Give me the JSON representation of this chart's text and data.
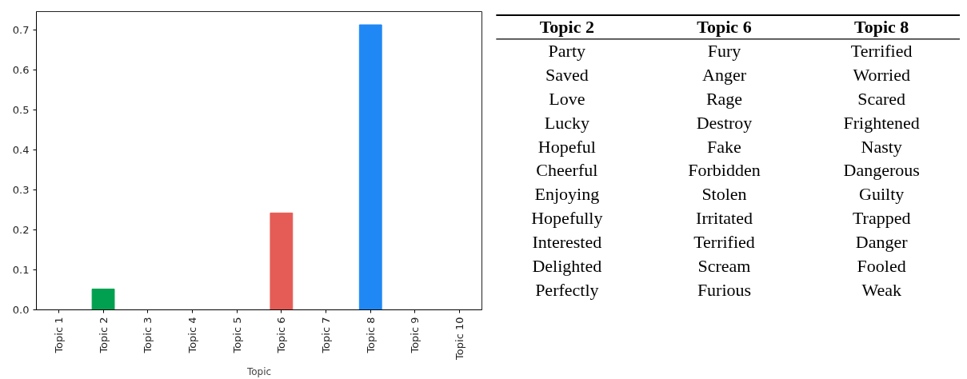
{
  "chart_data": [
    {
      "type": "bar",
      "xlabel": "Topic",
      "categories": [
        "Topic 1",
        "Topic 2",
        "Topic 3",
        "Topic 4",
        "Topic 5",
        "Topic 6",
        "Topic 7",
        "Topic 8",
        "Topic 9",
        "Topic 10"
      ],
      "values": [
        0,
        0.052,
        0,
        0,
        0,
        0.242,
        0,
        0.712,
        0,
        0
      ],
      "colors": [
        "#00a050",
        "#00a050",
        "#00a050",
        "#00a050",
        "#00a050",
        "#e45c55",
        "#e45c55",
        "#2088f4",
        "#2088f4",
        "#2088f4"
      ],
      "ylim": [
        0,
        0.745
      ],
      "yticks": [
        {
          "value": 0,
          "label": "0.0"
        },
        0.1,
        0.2,
        0.3,
        0.4,
        0.5,
        0.6,
        0.7
      ],
      "grid": false
    },
    {
      "type": "other",
      "categories": [
        "Topic 2",
        "Topic 6",
        "Topic 8"
      ],
      "annotations": [
        "Party",
        "Fury",
        "Terrified",
        "Saved",
        "Anger",
        "Worried",
        "Love",
        "Rage",
        "Scared",
        "Lucky",
        "Destroy",
        "Frightened",
        "Hopeful",
        "Fake",
        "Nasty",
        "Cheerful",
        "Forbidden",
        "Dangerous",
        "Enjoying",
        "Stolen",
        "Guilty",
        "Hopefully",
        "Irritated",
        "Trapped",
        "Interested",
        "Terrified",
        "Danger",
        "Delighted",
        "Scream",
        "Fooled",
        "Perfectly",
        "Furious",
        "Weak"
      ]
    }
  ]
}
